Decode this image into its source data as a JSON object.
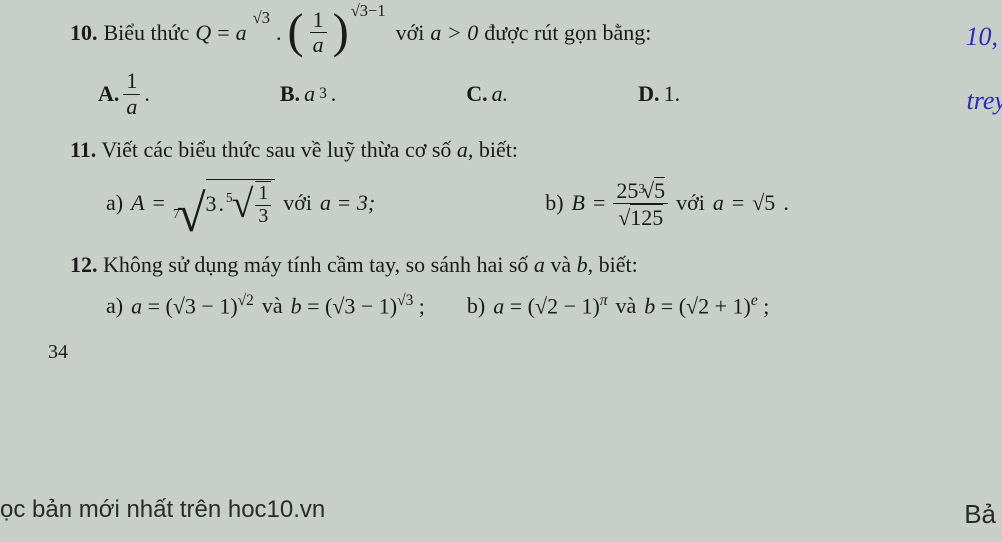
{
  "colors": {
    "bg": "#c8cec8",
    "text": "#1a1a1a",
    "handwrite": "#2b2bb8"
  },
  "q10": {
    "num": "10.",
    "stem_pre": "Biểu thức",
    "Q": "Q",
    "eq": "=",
    "a": "a",
    "exp1": "√3",
    "dot": ".",
    "frac_num": "1",
    "frac_den": "a",
    "exp2": "√3−1",
    "stem_mid": "với",
    "cond": "a > 0",
    "stem_post": "được rút gọn bằng:",
    "optA": "A.",
    "A_num": "1",
    "A_den": "a",
    "A_dot": ".",
    "optB": "B.",
    "B_val": "a",
    "B_exp": "3",
    "B_dot": ".",
    "optC": "C.",
    "C_val": "a.",
    "optD": "D.",
    "D_val": "1."
  },
  "q11": {
    "num": "11.",
    "stem": "Viết các biểu thức sau về luỹ thừa cơ số",
    "a": "a",
    "stem_post": ", biết:",
    "a_label": "a)",
    "a_A": "A",
    "a_eq": "=",
    "root7_idx": "7",
    "root7_inner_3": "3",
    "root7_dot": ".",
    "root5_idx": "5",
    "root5_num": "1",
    "root5_den": "3",
    "a_with": "với",
    "a_cond": "a = 3;",
    "b_label": "b)",
    "b_B": "B",
    "b_eq": "=",
    "b_num_25": "25",
    "b_num_root_idx": "3",
    "b_num_root_val": "5",
    "b_den_sqrt": "√",
    "b_den_val": "125",
    "b_with": "với",
    "b_cond_a": "a",
    "b_cond_eq": "=",
    "b_cond_root": "√5",
    "b_cond_dot": "."
  },
  "q12": {
    "num": "12.",
    "stem": "Không sử dụng máy tính cầm tay, so sánh hai số",
    "a": "a",
    "and": "và",
    "b": "b",
    "stem_post": ", biết:",
    "a_label": "a)",
    "a_lhs_a": "a",
    "a_eq": "=",
    "a_base1_l": "(",
    "a_base1_r": "√3 − 1)",
    "a_exp1": "√2",
    "a_and": "và",
    "a_rhs_b": "b",
    "a_base2_l": "(",
    "a_base2_r": "√3 − 1)",
    "a_exp2": "√3",
    "a_semi": ";",
    "b_label": "b)",
    "b_lhs_a": "a",
    "b_base1_l": "(",
    "b_base1_r": "√2 − 1)",
    "b_exp1": "π",
    "b_and": "và",
    "b_rhs_b": "b",
    "b_base2_l": "(",
    "b_base2_r": "√2 + 1)",
    "b_exp2": "e",
    "b_semi": ";"
  },
  "page": "34",
  "bottom_link": "ọc bản mới nhất trên hoc10.vn",
  "bottom_right": "Bả",
  "hw1": "10,",
  "hw2": "trey"
}
